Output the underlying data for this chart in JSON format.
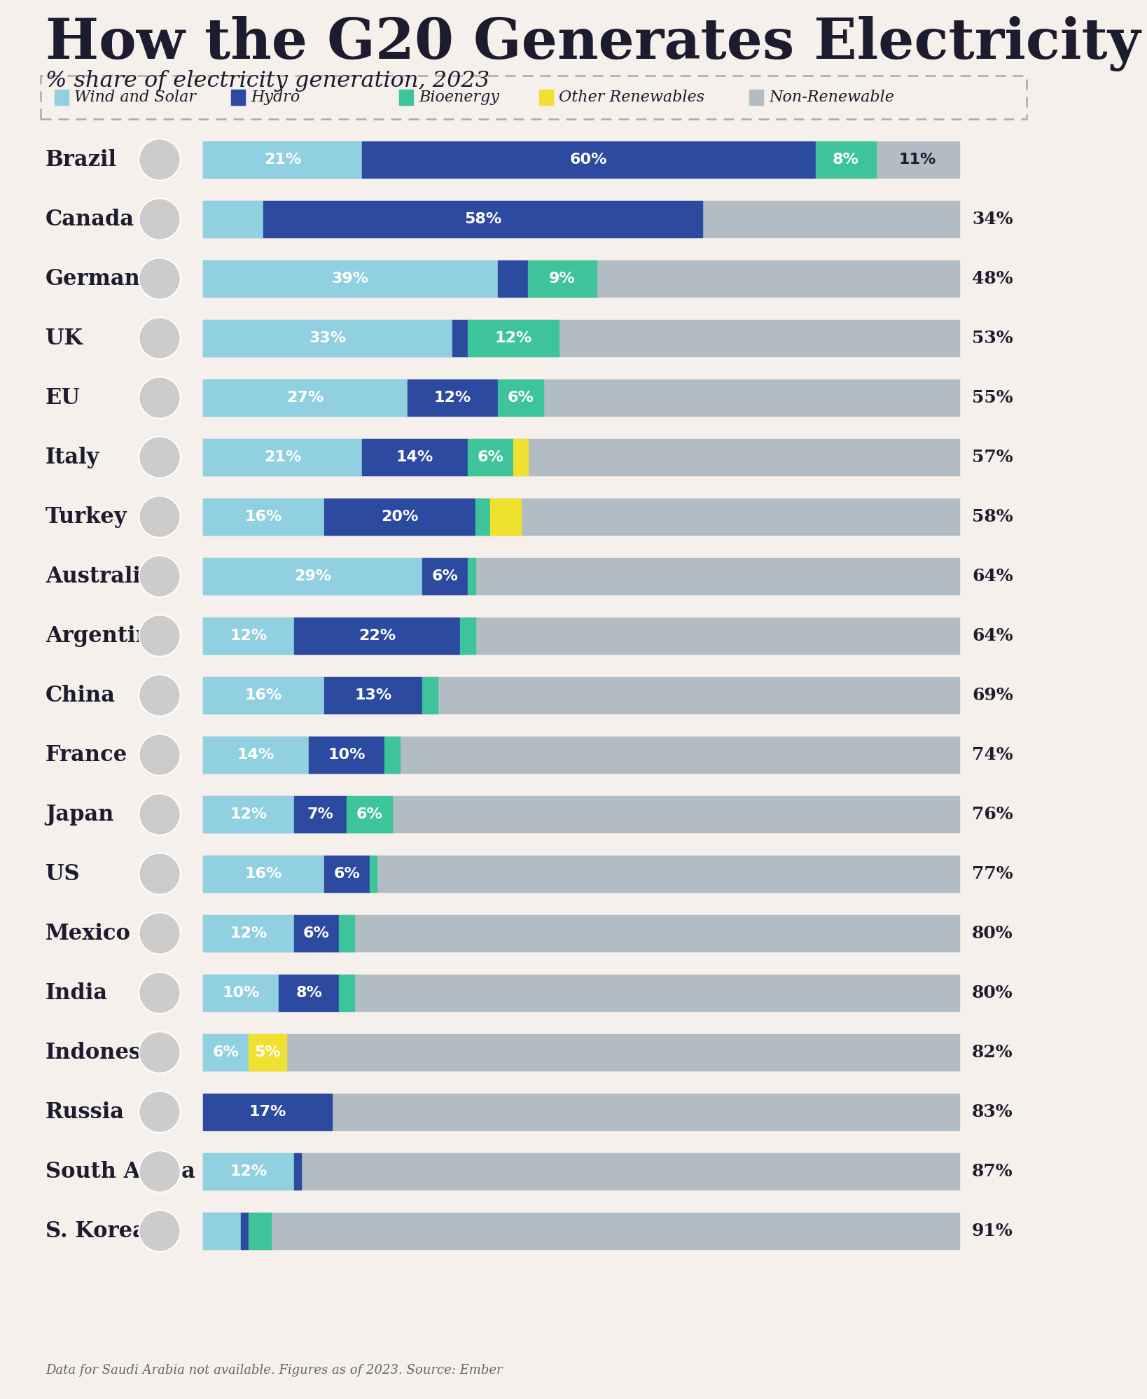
{
  "title": "How the G20 Generates Electricity",
  "subtitle": "% share of electricity generation, 2023",
  "footnote": "Data for Saudi Arabia not available. Figures as of 2023. Source: Ember",
  "background_color": "#f5f0eb",
  "bar_colors": {
    "wind_solar": "#90d0e0",
    "hydro": "#2b4aa0",
    "bioenergy": "#3ec49a",
    "other_renewables": "#f0e030",
    "non_renewable": "#b2bcc5"
  },
  "legend_labels": [
    "Wind and Solar",
    "Hydro",
    "Bioenergy",
    "Other Renewables",
    "Non-Renewable"
  ],
  "countries": [
    "Brazil",
    "Canada",
    "Germany",
    "UK",
    "EU",
    "Italy",
    "Turkey",
    "Australia",
    "Argentina",
    "China",
    "France",
    "Japan",
    "US",
    "Mexico",
    "India",
    "Indonesia",
    "Russia",
    "South Africa",
    "S. Korea"
  ],
  "data": {
    "Brazil": [
      21,
      60,
      8,
      0,
      11
    ],
    "Canada": [
      8,
      58,
      0,
      0,
      34
    ],
    "Germany": [
      39,
      4,
      9,
      0,
      48
    ],
    "UK": [
      33,
      2,
      12,
      0,
      53
    ],
    "EU": [
      27,
      12,
      6,
      0,
      55
    ],
    "Italy": [
      21,
      14,
      6,
      2,
      57
    ],
    "Turkey": [
      16,
      20,
      2,
      4,
      58
    ],
    "Australia": [
      29,
      6,
      1,
      0,
      64
    ],
    "Argentina": [
      12,
      22,
      2,
      0,
      64
    ],
    "China": [
      16,
      13,
      2,
      0,
      69
    ],
    "France": [
      14,
      10,
      2,
      0,
      74
    ],
    "Japan": [
      12,
      7,
      6,
      0,
      76
    ],
    "US": [
      16,
      6,
      1,
      0,
      77
    ],
    "Mexico": [
      12,
      6,
      2,
      0,
      80
    ],
    "India": [
      10,
      8,
      2,
      0,
      80
    ],
    "Indonesia": [
      6,
      0,
      0,
      5,
      82
    ],
    "Russia": [
      0,
      17,
      0,
      0,
      83
    ],
    "South Africa": [
      12,
      1,
      0,
      0,
      87
    ],
    "S. Korea": [
      5,
      1,
      3,
      0,
      91
    ]
  },
  "shown_labels": {
    "Brazil": [
      "21%",
      "60%",
      "8%",
      "",
      "11%"
    ],
    "Canada": [
      "",
      "58%",
      "",
      "",
      "34%"
    ],
    "Germany": [
      "39%",
      "",
      "9%",
      "",
      "48%"
    ],
    "UK": [
      "33%",
      "",
      "12%",
      "",
      "53%"
    ],
    "EU": [
      "27%",
      "12%",
      "6%",
      "",
      "55%"
    ],
    "Italy": [
      "21%",
      "14%",
      "6%",
      "",
      "57%"
    ],
    "Turkey": [
      "16%",
      "20%",
      "",
      "",
      "58%"
    ],
    "Australia": [
      "29%",
      "6%",
      "",
      "",
      "64%"
    ],
    "Argentina": [
      "12%",
      "22%",
      "",
      "",
      "64%"
    ],
    "China": [
      "16%",
      "13%",
      "",
      "",
      "69%"
    ],
    "France": [
      "14%",
      "10%",
      "",
      "",
      "74%"
    ],
    "Japan": [
      "12%",
      "7%",
      "6%",
      "",
      "76%"
    ],
    "US": [
      "16%",
      "6%",
      "",
      "",
      "77%"
    ],
    "Mexico": [
      "12%",
      "6%",
      "",
      "",
      "80%"
    ],
    "India": [
      "10%",
      "8%",
      "",
      "",
      "80%"
    ],
    "Indonesia": [
      "6%",
      "",
      "",
      "5%",
      "82%"
    ],
    "Russia": [
      "",
      "17%",
      "",
      "",
      "83%"
    ],
    "South Africa": [
      "12%",
      "",
      "",
      "",
      "87%"
    ],
    "S. Korea": [
      "",
      "",
      "",
      "",
      "91%"
    ]
  },
  "nr_inside": {
    "Brazil": true,
    "Canada": false,
    "Germany": false,
    "UK": false,
    "EU": false,
    "Italy": false,
    "Turkey": false,
    "Australia": false,
    "Argentina": false,
    "China": false,
    "France": false,
    "Japan": false,
    "US": false,
    "Mexico": false,
    "India": false,
    "Indonesia": false,
    "Russia": false,
    "South Africa": false,
    "S. Korea": false
  },
  "title_fontsize": 58,
  "subtitle_fontsize": 23,
  "country_fontsize": 22,
  "bar_label_fontsize": 16,
  "nr_label_fontsize": 18,
  "legend_fontsize": 16
}
